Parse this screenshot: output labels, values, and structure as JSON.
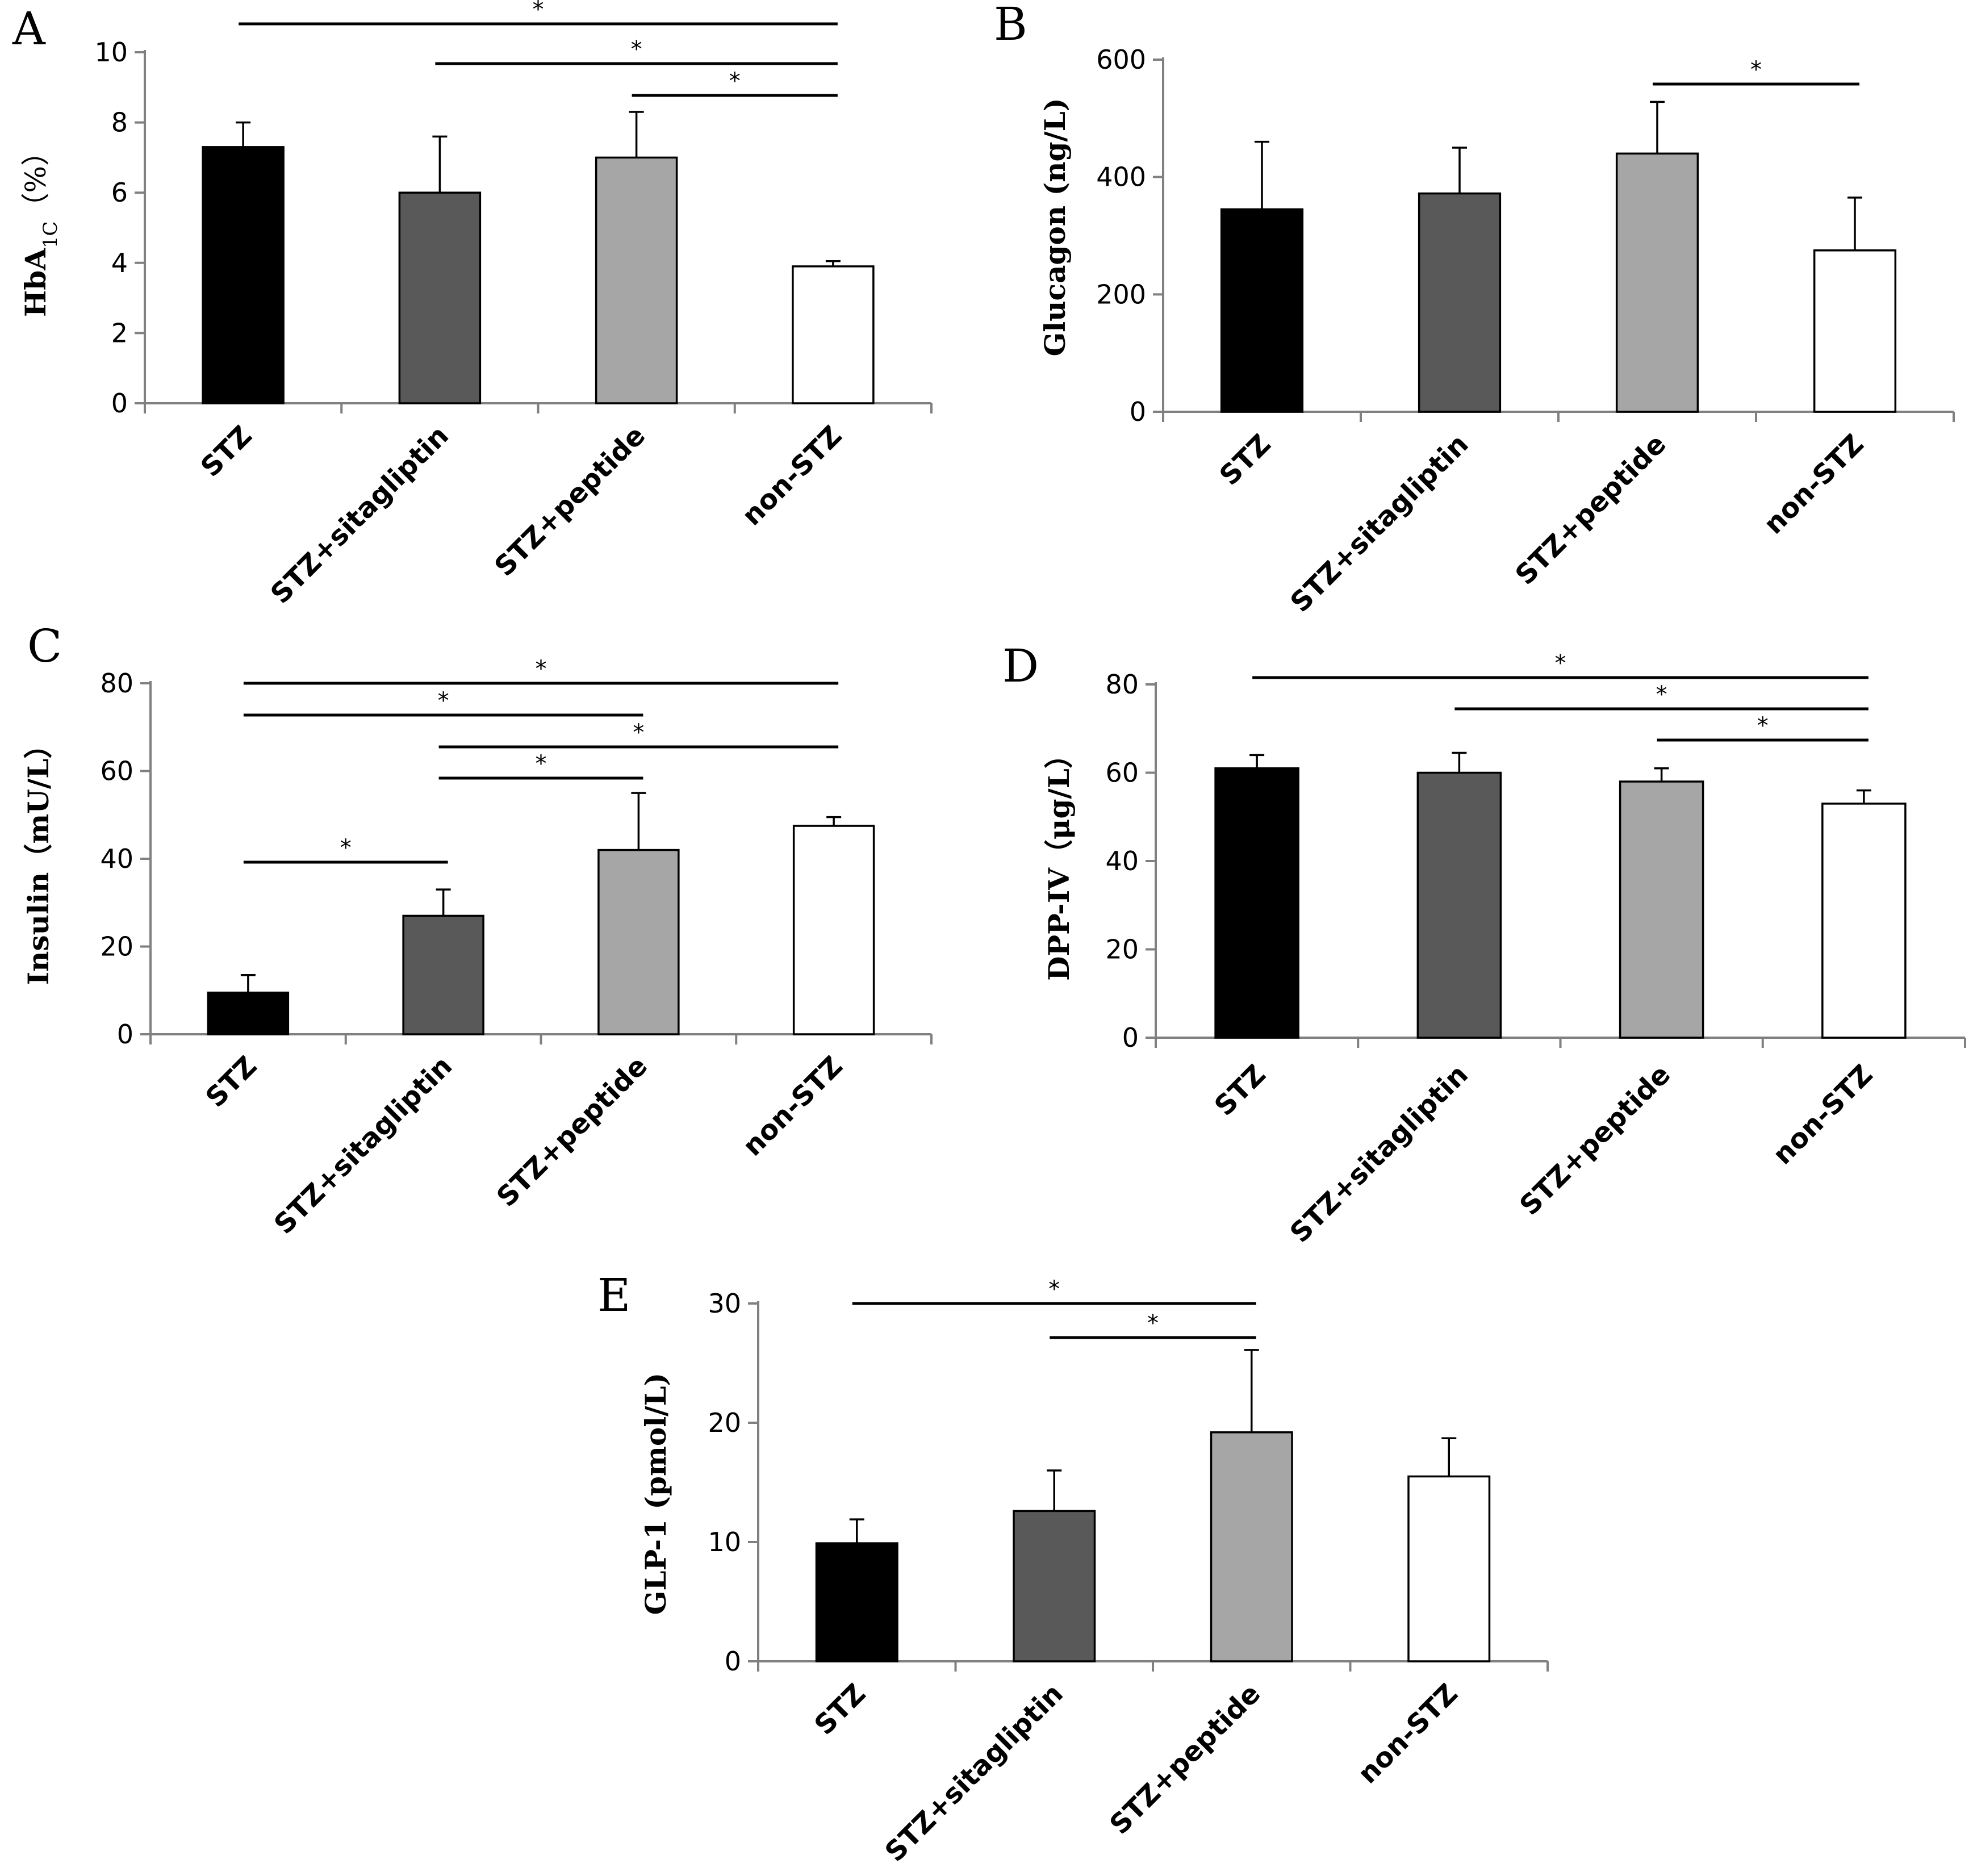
{
  "colors": {
    "bar_fills": [
      "#000000",
      "#595959",
      "#a6a6a6",
      "#ffffff"
    ],
    "axis": "#808080",
    "bar_stroke": "#000000"
  },
  "chart_data": [
    {
      "type": "bar",
      "panel": "A",
      "ylabel": "HbA",
      "ylabel_sub": "1C",
      "ylabel_suffix": "（%）",
      "categories": [
        "STZ",
        "STZ+sitagliptin",
        "STZ+peptide",
        "non-STZ"
      ],
      "values": [
        7.3,
        6.0,
        7.0,
        3.9
      ],
      "errors": [
        0.7,
        1.6,
        1.3,
        0.15
      ],
      "ylim": [
        0,
        10
      ],
      "yticks": [
        "0",
        "2",
        "4",
        "6",
        "8",
        "10"
      ],
      "significance": [
        {
          "from": 0,
          "to": 3,
          "label": "*"
        },
        {
          "from": 1,
          "to": 3,
          "label": "*"
        },
        {
          "from": 2,
          "to": 3,
          "label": "*"
        }
      ]
    },
    {
      "type": "bar",
      "panel": "B",
      "ylabel": "Glucagon (ng/L)",
      "categories": [
        "STZ",
        "STZ+sitagliptin",
        "STZ+peptide",
        "non-STZ"
      ],
      "values": [
        345,
        372,
        440,
        275
      ],
      "errors": [
        115,
        78,
        88,
        90
      ],
      "ylim": [
        0,
        600
      ],
      "yticks": [
        "0",
        "200",
        "400",
        "600"
      ],
      "significance": [
        {
          "from": 2,
          "to": 3,
          "label": "*"
        }
      ]
    },
    {
      "type": "bar",
      "panel": "C",
      "ylabel": "Insulin（mU/L）",
      "categories": [
        "STZ",
        "STZ+sitagliptin",
        "STZ+peptide",
        "non-STZ"
      ],
      "values": [
        9.5,
        27,
        42,
        47.5
      ],
      "errors": [
        4,
        6,
        13,
        2
      ],
      "ylim": [
        0,
        80
      ],
      "yticks": [
        "0",
        "20",
        "40",
        "60",
        "80"
      ],
      "significance": [
        {
          "from": 0,
          "to": 3,
          "label": "*"
        },
        {
          "from": 0,
          "to": 2,
          "label": "*"
        },
        {
          "from": 1,
          "to": 3,
          "label": "*"
        },
        {
          "from": 1,
          "to": 2,
          "label": "*"
        },
        {
          "from": 0,
          "to": 1,
          "label": "*"
        }
      ]
    },
    {
      "type": "bar",
      "panel": "D",
      "ylabel": "DPP-IV（μg/L）",
      "categories": [
        "STZ",
        "STZ+sitagliptin",
        "STZ+peptide",
        "non-STZ"
      ],
      "values": [
        61,
        60,
        58,
        53
      ],
      "errors": [
        3,
        4.5,
        3,
        3
      ],
      "ylim": [
        0,
        80
      ],
      "yticks": [
        "0",
        "20",
        "40",
        "60",
        "80"
      ],
      "significance": [
        {
          "from": 0,
          "to": 3,
          "label": "*"
        },
        {
          "from": 1,
          "to": 3,
          "label": "*"
        },
        {
          "from": 2,
          "to": 3,
          "label": "*"
        }
      ]
    },
    {
      "type": "bar",
      "panel": "E",
      "ylabel": "GLP-1 (pmol/L)",
      "categories": [
        "STZ",
        "STZ+sitagliptin",
        "STZ+peptide",
        "non-STZ"
      ],
      "values": [
        9.9,
        12.6,
        19.2,
        15.5
      ],
      "errors": [
        2,
        3.4,
        6.9,
        3.2
      ],
      "ylim": [
        0,
        30
      ],
      "yticks": [
        "0",
        "10",
        "20",
        "30"
      ],
      "significance": [
        {
          "from": 0,
          "to": 2,
          "label": "*"
        },
        {
          "from": 1,
          "to": 2,
          "label": "*"
        }
      ]
    }
  ]
}
